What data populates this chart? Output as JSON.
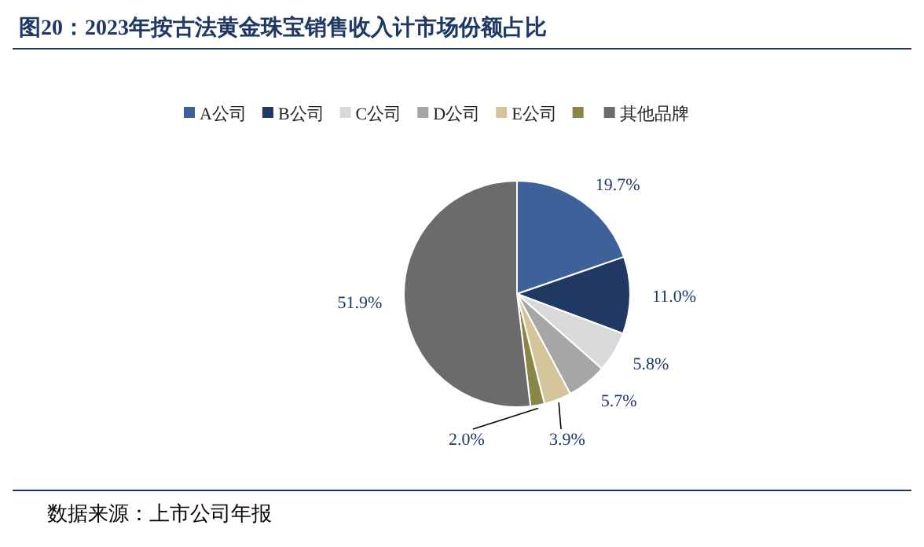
{
  "chart_data": {
    "type": "pie",
    "title": "图20：2023年按古法黄金珠宝销售收入计市场份额占比",
    "categories": [
      "A公司",
      "B公司",
      "C公司",
      "D公司",
      "E公司",
      null,
      "其他品牌"
    ],
    "values": [
      19.7,
      11.0,
      5.8,
      5.7,
      3.9,
      2.0,
      51.9
    ],
    "colors": [
      "#3d6198",
      "#1f3864",
      "#d9d9d9",
      "#a6a6a6",
      "#d4c49a",
      "#8a8648",
      "#6b6b6b"
    ],
    "value_labels": [
      "19.7%",
      "11.0%",
      "5.8%",
      "5.7%",
      "3.9%",
      "2.0%",
      "51.9%"
    ],
    "legend": "top",
    "annotations": [
      "数据来源：上市公司年报"
    ]
  }
}
